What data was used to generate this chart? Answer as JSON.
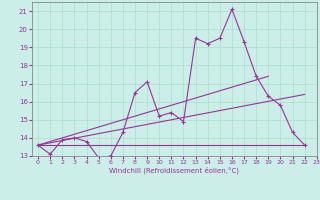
{
  "xlabel": "Windchill (Refroidissement éolien,°C)",
  "xlim": [
    -0.5,
    23
  ],
  "ylim": [
    13,
    21.5
  ],
  "yticks": [
    13,
    14,
    15,
    16,
    17,
    18,
    19,
    20,
    21
  ],
  "xticks": [
    0,
    1,
    2,
    3,
    4,
    5,
    6,
    7,
    8,
    9,
    10,
    11,
    12,
    13,
    14,
    15,
    16,
    17,
    18,
    19,
    20,
    21,
    22,
    23
  ],
  "bg_color": "#cceee8",
  "line_color": "#993399",
  "grid_color": "#aaddcc",
  "main_series": {
    "x": [
      0,
      1,
      2,
      3,
      4,
      5,
      6,
      7,
      8,
      9,
      10,
      11,
      12,
      13,
      14,
      15,
      16,
      17,
      18,
      19,
      20,
      21,
      22
    ],
    "y": [
      13.6,
      13.1,
      13.9,
      14.0,
      13.8,
      12.9,
      13.0,
      14.3,
      16.5,
      17.1,
      15.2,
      15.4,
      14.9,
      19.5,
      19.2,
      19.5,
      21.1,
      19.3,
      17.4,
      16.3,
      15.8,
      14.3,
      13.6
    ]
  },
  "trend1": {
    "x": [
      0,
      22
    ],
    "y": [
      13.6,
      13.6
    ]
  },
  "trend2": {
    "x": [
      0,
      22
    ],
    "y": [
      13.6,
      16.4
    ]
  },
  "trend3": {
    "x": [
      0,
      19
    ],
    "y": [
      13.6,
      17.4
    ]
  }
}
